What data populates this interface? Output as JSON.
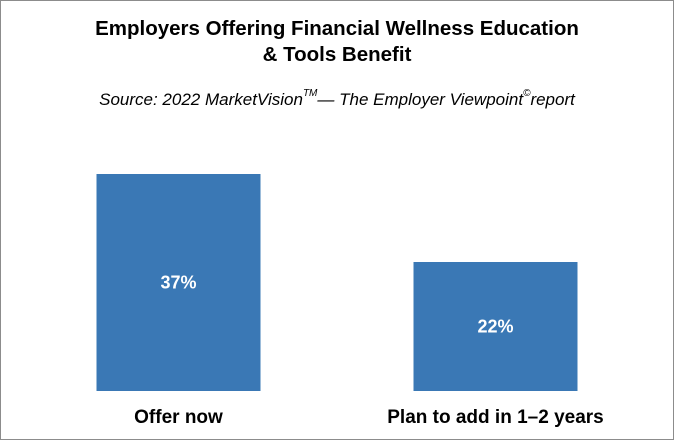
{
  "chart_data": {
    "type": "bar",
    "title_line1": "Employers Offering Financial Wellness Education",
    "title_line2": "& Tools Benefit",
    "subtitle": {
      "prefix": "Source: 2022 MarketVision",
      "sup1": "TM",
      "middle": "— The Employer Viewpoint",
      "sup2": "©",
      "suffix": "report"
    },
    "categories": [
      "Offer now",
      "Plan to add in 1–2 years"
    ],
    "values": [
      37,
      22
    ],
    "data_labels": [
      "37%",
      "22%"
    ],
    "unit": "%",
    "ylim": [
      0,
      40
    ],
    "grid": false,
    "legend": "none",
    "bar_color": "#3a78b5",
    "data_label_color": "#ffffff"
  }
}
